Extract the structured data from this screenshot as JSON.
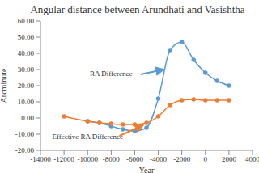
{
  "chart_data": {
    "type": "line",
    "title": "Angular distance between Arundhati and Vasishtha",
    "x_label": "Year",
    "y_label": "Arcminute",
    "x": [
      -12000,
      -10000,
      -9000,
      -8000,
      -7000,
      -6000,
      -5000,
      -4000,
      -3000,
      -2000,
      -1000,
      0,
      1000,
      2000
    ],
    "series": [
      {
        "name": "RA Difference",
        "color": "#5b9bd5",
        "marker": "circle",
        "values": [
          null,
          -2,
          -3,
          -5,
          -7,
          -8,
          -6,
          12,
          42,
          47,
          36,
          28,
          23,
          20
        ]
      },
      {
        "name": "Effective RA Difference",
        "color": "#ed7d31",
        "marker": "circle",
        "values": [
          1,
          -2,
          -3,
          -3.5,
          -4,
          -4,
          -3,
          1,
          8,
          11,
          11.5,
          11,
          11,
          11
        ]
      }
    ],
    "xlim": [
      -14000,
      4000
    ],
    "xticks": [
      -14000,
      -12000,
      -10000,
      -8000,
      -6000,
      -4000,
      -2000,
      0,
      2000,
      4000
    ],
    "ylim": [
      -20,
      60
    ],
    "yticks": [
      {
        "value": -20,
        "label": "-20.00"
      },
      {
        "value": -10,
        "label": "-10.00"
      },
      {
        "value": 0,
        "label": "0.00"
      },
      {
        "value": 10,
        "label": "10.00"
      },
      {
        "value": 20,
        "label": "20.00"
      },
      {
        "value": 30,
        "label": "30.00"
      },
      {
        "value": 40,
        "label": "40.00"
      },
      {
        "value": 50,
        "label": "50.00"
      },
      {
        "value": 60,
        "label": "60.00"
      }
    ],
    "grid": false,
    "annotations": [
      {
        "text": "RA Difference",
        "series": "RA Difference"
      },
      {
        "text": "Effective RA Difference",
        "series": "Effective RA Difference"
      }
    ]
  }
}
